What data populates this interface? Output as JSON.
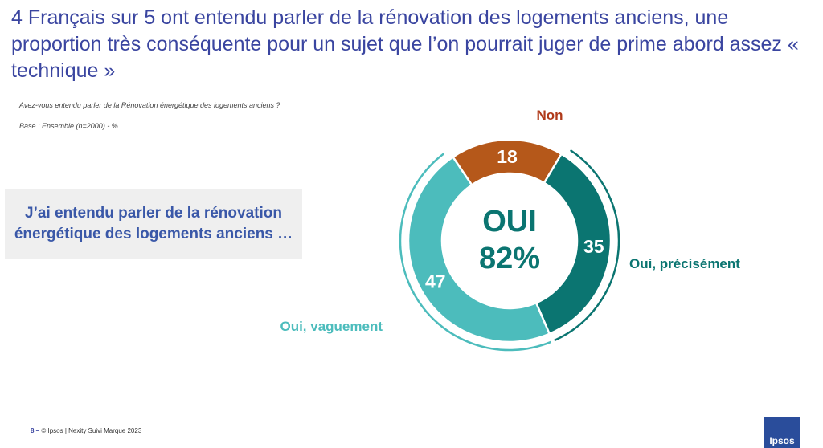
{
  "title": "4 Français sur 5 ont entendu parler de la rénovation des logements anciens, une proportion très conséquente pour un sujet que l’on pourrait juger de prime abord assez « technique »",
  "question": "Avez-vous entendu parler de la Rénovation énergétique des logements anciens ?",
  "base": "Base : Ensemble (n=2000) - %",
  "callout": "J’ai entendu parler de la rénovation énergétique des logements anciens …",
  "center": {
    "line1": "OUI",
    "line2": "82%"
  },
  "footer": {
    "page": "8 –",
    "text": "© Ipsos | Nexity Suivi Marque 2023"
  },
  "logo": "Ipsos",
  "colors": {
    "non": "#b5581a",
    "precisement": "#0b7571",
    "vaguement": "#4cbcbc",
    "title": "#3a45a0"
  },
  "chart_data": {
    "type": "pie",
    "variant": "donut",
    "categories": [
      "Non",
      "Oui, précisément",
      "Oui, vaguement"
    ],
    "values": [
      18,
      35,
      47
    ],
    "unit": "%"
  }
}
